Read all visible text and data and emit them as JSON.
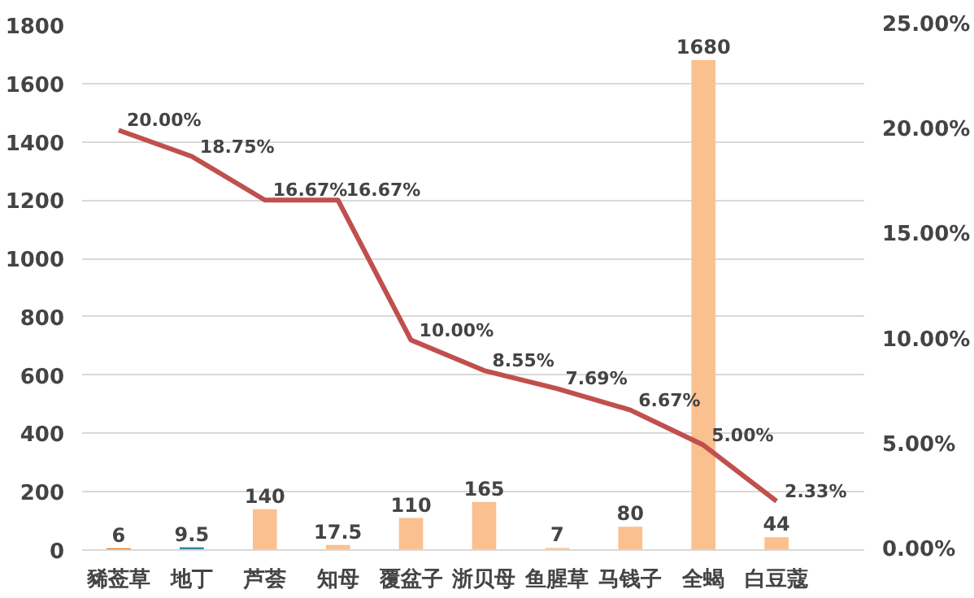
{
  "chart_data": {
    "type": "bar",
    "categories": [
      "豨莶草",
      "地丁",
      "芦荟",
      "知母",
      "覆盆子",
      "浙贝母",
      "鱼腥草",
      "马钱子",
      "全蝎",
      "白豆蔻"
    ],
    "series": [
      {
        "colors": [
          "#e46c0a",
          "#31859c",
          "#fac090",
          "#fac090",
          "#fac090",
          "#fac090",
          "#fac090",
          "#fac090",
          "#fac090",
          "#fac090"
        ],
        "values": [
          6,
          9.5,
          140,
          17.5,
          110,
          165,
          7,
          80,
          1680,
          44
        ],
        "value_labels": [
          "6",
          "9.5",
          "140",
          "17.5",
          "110",
          "165",
          "7",
          "80",
          "1680",
          "44"
        ]
      },
      {
        "type": "line",
        "axis": "y2",
        "color": "#c0504d",
        "values": [
          20,
          18.75,
          16.67,
          16.67,
          10,
          8.55,
          7.69,
          6.67,
          5,
          2.33
        ],
        "value_labels": [
          "20.00%",
          "18.75%",
          "16.67%",
          "16.67%",
          "10.00%",
          "8.55%",
          "7.69%",
          "6.67%",
          "5.00%",
          "2.33%"
        ]
      }
    ],
    "ylim": [
      0,
      1800
    ],
    "yticks": [
      0,
      200,
      400,
      600,
      800,
      1000,
      1200,
      1400,
      1600,
      1800
    ],
    "y2lim": [
      0,
      25
    ],
    "y2ticks": [
      {
        "value": 0,
        "label": "0.00%"
      },
      {
        "value": 5,
        "label": "5.00%"
      },
      {
        "value": 10,
        "label": "10.00%"
      },
      {
        "value": 15,
        "label": "15.00%"
      },
      {
        "value": 20,
        "label": "20.00%"
      },
      {
        "value": 25,
        "label": "25.00%"
      }
    ],
    "grid": "y",
    "marker": "none",
    "line_style": "solid"
  }
}
